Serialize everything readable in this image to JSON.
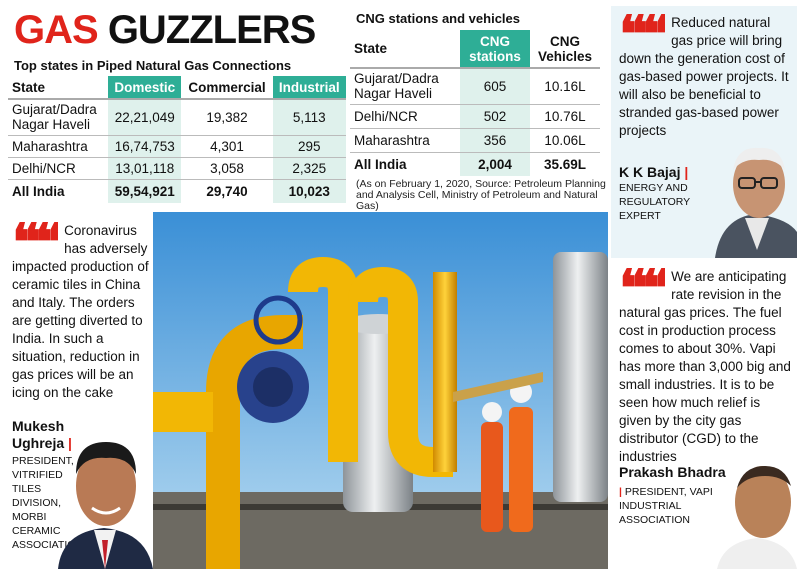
{
  "headline": {
    "word1": "GAS",
    "word2": "GUZZLERS"
  },
  "png": {
    "title": "Top states in Piped Natural Gas Connections",
    "headers": [
      "State",
      "Domestic",
      "Commercial",
      "Industrial"
    ],
    "rows": [
      {
        "state": "Gujarat/Dadra Nagar Haveli",
        "domestic": "22,21,049",
        "commercial": "19,382",
        "industrial": "5,113"
      },
      {
        "state": "Maharashtra",
        "domestic": "16,74,753",
        "commercial": "4,301",
        "industrial": "295"
      },
      {
        "state": "Delhi/NCR",
        "domestic": "13,01,118",
        "commercial": "3,058",
        "industrial": "2,325"
      }
    ],
    "total": {
      "state": "All India",
      "domestic": "59,54,921",
      "commercial": "29,740",
      "industrial": "10,023"
    }
  },
  "cng": {
    "title": "CNG stations and vehicles",
    "headers": [
      "State",
      "CNG stations",
      "CNG Vehicles"
    ],
    "rows": [
      {
        "state": "Gujarat/Dadra Nagar Haveli",
        "stations": "605",
        "vehicles": "10.16L"
      },
      {
        "state": "Delhi/NCR",
        "stations": "502",
        "vehicles": "10.76L"
      },
      {
        "state": "Maharashtra",
        "stations": "356",
        "vehicles": "10.06L"
      }
    ],
    "total": {
      "state": "All India",
      "stations": "2,004",
      "vehicles": "35.69L"
    },
    "note": "(As on February 1, 2020, Source: Petroleum Planning and Analysis Cell, Ministry of Petroleum and Natural Gas)"
  },
  "quotes": {
    "bajaj": {
      "text": "Reduced natural gas price will bring down the generation cost of gas-based power projects. It will also be beneficial to stranded gas-based power projects",
      "name": "K K Bajaj",
      "role": "ENERGY AND REGULATORY EXPERT"
    },
    "ughreja": {
      "text": "Coronavirus has adversely impacted production of ceramic tiles in China and Italy. The orders are getting diverted to India. In such a situation, reduction in gas prices will be an icing on the cake",
      "name": "Mukesh Ughreja",
      "role": "PRESIDENT, VITRIFIED TILES DIVISION, MORBI CERAMIC ASSOCIATION"
    },
    "bhadra": {
      "text": "We are anticipating rate revision in the natural gas prices. The fuel cost in production process comes to about 30%. Vapi has more than 3,000 big and small industries. It is to be seen how much relief is given by the city gas distributor (CGD) to the industries",
      "name": "Prakash Bhadra",
      "role": "PRESIDENT, VAPI INDUSTRIAL ASSOCIATION"
    }
  },
  "colors": {
    "accent_red": "#e0241b",
    "teal": "#2eae96",
    "pipe_yellow": "#f2b705"
  }
}
